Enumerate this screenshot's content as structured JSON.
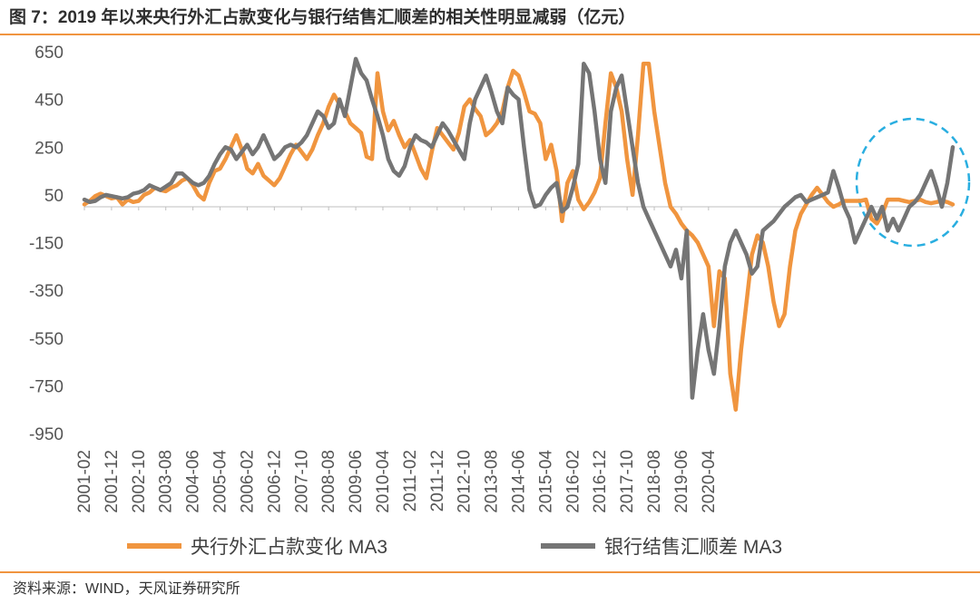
{
  "title": "图 7：2019 年以来央行外汇占款变化与银行结售汇顺差的相关性明显减弱（亿元）",
  "source": "资料来源：WIND，天风证券研究所",
  "chart_data": {
    "type": "line",
    "title": "图 7：2019 年以来央行外汇占款变化与银行结售汇顺差的相关性明显减弱（亿元）",
    "xlabel": "",
    "ylabel": "",
    "ylim": [
      -950,
      650
    ],
    "yticks": [
      650,
      450,
      250,
      50,
      -150,
      -350,
      -550,
      -750,
      -950
    ],
    "xticks": [
      "2001-02",
      "2001-12",
      "2002-10",
      "2003-08",
      "2004-06",
      "2005-04",
      "2006-02",
      "2006-12",
      "2007-10",
      "2008-08",
      "2009-06",
      "2010-04",
      "2011-02",
      "2011-12",
      "2012-10",
      "2013-08",
      "2014-06",
      "2015-04",
      "2016-02",
      "2016-12",
      "2017-10",
      "2018-08",
      "2019-06",
      "2020-04"
    ],
    "legend_position": "bottom",
    "annotation": "dashed circle highlighting 2019–2020",
    "x_start": "2001-02",
    "x_step": "2 months",
    "series": [
      {
        "name": "央行外汇占款变化 MA3",
        "color": "#f0953f",
        "values": [
          10,
          25,
          45,
          55,
          45,
          35,
          40,
          10,
          30,
          20,
          25,
          50,
          60,
          80,
          70,
          65,
          80,
          90,
          110,
          120,
          90,
          50,
          30,
          100,
          150,
          160,
          200,
          250,
          300,
          240,
          160,
          140,
          180,
          130,
          110,
          90,
          120,
          170,
          220,
          260,
          230,
          200,
          240,
          300,
          350,
          420,
          470,
          430,
          400,
          350,
          330,
          310,
          210,
          200,
          560,
          400,
          320,
          360,
          300,
          250,
          280,
          220,
          160,
          120,
          230,
          330,
          300,
          270,
          240,
          310,
          420,
          450,
          410,
          380,
          300,
          320,
          350,
          400,
          500,
          570,
          550,
          480,
          400,
          390,
          350,
          200,
          260,
          150,
          -60,
          100,
          150,
          30,
          -10,
          20,
          60,
          120,
          350,
          560,
          500,
          400,
          200,
          50,
          300,
          600,
          600,
          400,
          250,
          100,
          0,
          -30,
          -70,
          -100,
          -120,
          -150,
          -200,
          -250,
          -500,
          -270,
          -300,
          -700,
          -850,
          -600,
          -400,
          -200,
          -120,
          -150,
          -250,
          -400,
          -500,
          -450,
          -250,
          -100,
          -30,
          10,
          50,
          80,
          50,
          20,
          0,
          10,
          25,
          25,
          25,
          25,
          30,
          -50,
          -70,
          -30,
          30,
          30,
          30,
          25,
          20,
          25,
          30,
          20,
          15,
          20,
          25,
          20,
          10
        ]
      },
      {
        "name": "银行结售汇顺差 MA3",
        "color": "#757575",
        "values": [
          30,
          20,
          25,
          40,
          50,
          45,
          40,
          35,
          40,
          55,
          60,
          70,
          90,
          80,
          70,
          85,
          100,
          140,
          140,
          120,
          100,
          90,
          100,
          130,
          180,
          220,
          250,
          240,
          200,
          230,
          260,
          220,
          250,
          300,
          250,
          200,
          220,
          250,
          260,
          250,
          270,
          300,
          350,
          400,
          380,
          330,
          350,
          450,
          380,
          500,
          620,
          560,
          530,
          450,
          380,
          300,
          200,
          150,
          130,
          170,
          250,
          300,
          280,
          270,
          250,
          300,
          350,
          320,
          280,
          240,
          200,
          350,
          450,
          500,
          550,
          480,
          400,
          350,
          500,
          470,
          450,
          250,
          70,
          0,
          10,
          50,
          80,
          100,
          -20,
          0,
          80,
          180,
          600,
          560,
          400,
          200,
          100,
          400,
          500,
          550,
          400,
          250,
          100,
          0,
          -50,
          -100,
          -150,
          -200,
          -250,
          -180,
          -300,
          -100,
          -800,
          -600,
          -450,
          -600,
          -700,
          -500,
          -250,
          -150,
          -100,
          -150,
          -200,
          -280,
          -250,
          -100,
          -80,
          -60,
          -30,
          0,
          20,
          40,
          50,
          20,
          30,
          40,
          50,
          60,
          150,
          80,
          0,
          -50,
          -150,
          -100,
          -50,
          0,
          -50,
          0,
          -100,
          -50,
          -100,
          -50,
          0,
          20,
          50,
          100,
          150,
          80,
          0,
          100,
          250
        ]
      }
    ]
  }
}
